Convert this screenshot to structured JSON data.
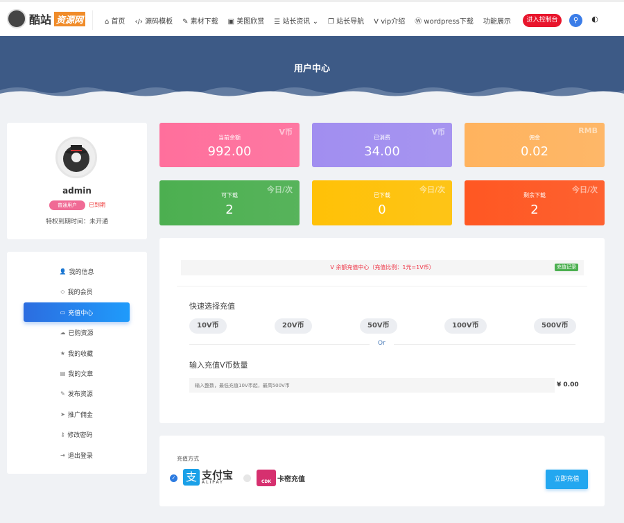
{
  "header": {
    "logo_text": "酷站",
    "logo_badge": "资源网",
    "nav": [
      {
        "icon": "home-icon",
        "glyph": "⌂",
        "label": "首页"
      },
      {
        "icon": "code-icon",
        "glyph": "‹/›",
        "label": "源码模板"
      },
      {
        "icon": "pencil-icon",
        "glyph": "✎",
        "label": "素材下载"
      },
      {
        "icon": "image-icon",
        "glyph": "▣",
        "label": "美图欣赏"
      },
      {
        "icon": "list-icon",
        "glyph": "☰",
        "label": "站长资讯 ⌄"
      },
      {
        "icon": "copy-icon",
        "glyph": "❐",
        "label": "站长导航"
      },
      {
        "icon": "vimeo-icon",
        "glyph": "V",
        "label": "vip介绍"
      },
      {
        "icon": "wordpress-icon",
        "glyph": "Ⓦ",
        "label": "wordpress下载"
      },
      {
        "icon": "",
        "glyph": "",
        "label": "功能展示"
      }
    ],
    "console_button": "进入控制台"
  },
  "banner": {
    "title": "用户中心"
  },
  "profile": {
    "username": "admin",
    "badge": "普通用户",
    "status": "已到期",
    "vip_time": "特权到期时间：未开通"
  },
  "sidebar": {
    "items": [
      {
        "icon": "user-icon",
        "glyph": "👤",
        "label": "我的信息"
      },
      {
        "icon": "diamond-icon",
        "glyph": "◇",
        "label": "我的会员"
      },
      {
        "icon": "credit-card-icon",
        "glyph": "▭",
        "label": "充值中心",
        "active": true
      },
      {
        "icon": "cloud-download-icon",
        "glyph": "☁",
        "label": "已购资源"
      },
      {
        "icon": "star-icon",
        "glyph": "★",
        "label": "我的收藏"
      },
      {
        "icon": "file-icon",
        "glyph": "▤",
        "label": "我的文章"
      },
      {
        "icon": "pencil-icon",
        "glyph": "✎",
        "label": "发布资源"
      },
      {
        "icon": "send-icon",
        "glyph": "➤",
        "label": "推广佣金"
      },
      {
        "icon": "key-icon",
        "glyph": "⚷",
        "label": "修改密码"
      },
      {
        "icon": "logout-icon",
        "glyph": "⇥",
        "label": "退出登录"
      }
    ]
  },
  "stats": [
    {
      "label": "当前余额",
      "value": "992.00",
      "unit": "V币",
      "color": "#ff6f9c"
    },
    {
      "label": "已消费",
      "value": "34.00",
      "unit": "V币",
      "color": "#a18ef0"
    },
    {
      "label": "佣金",
      "value": "0.02",
      "unit": "RMB",
      "color": "#ffb35e"
    },
    {
      "label": "可下载",
      "value": "2",
      "unit": "今日/次",
      "color": "#4caf50"
    },
    {
      "label": "已下载",
      "value": "0",
      "unit": "今日/次",
      "color": "#ffc107"
    },
    {
      "label": "剩余下载",
      "value": "2",
      "unit": "今日/次",
      "color": "#ff5722"
    }
  ],
  "recharge": {
    "header": "V 余额充值中心（充值比例：1元=1V币）",
    "log_button": "充值记录",
    "quick_label": "快速选择充值",
    "amounts": [
      "10V币",
      "20V币",
      "50V币",
      "100V币",
      "500V币"
    ],
    "or": "Or",
    "input_label": "输入充值V币数量",
    "input_placeholder": "输入整数，最低充值10V币起，最高500V币",
    "total": "¥ 0.00"
  },
  "payment": {
    "label": "充值方式",
    "alipay_text": "支付宝",
    "alipay_sub": "ALIPAY",
    "cdk_icon_text": "CDK",
    "cdk_text": "卡密充值",
    "submit": "立即充值"
  }
}
